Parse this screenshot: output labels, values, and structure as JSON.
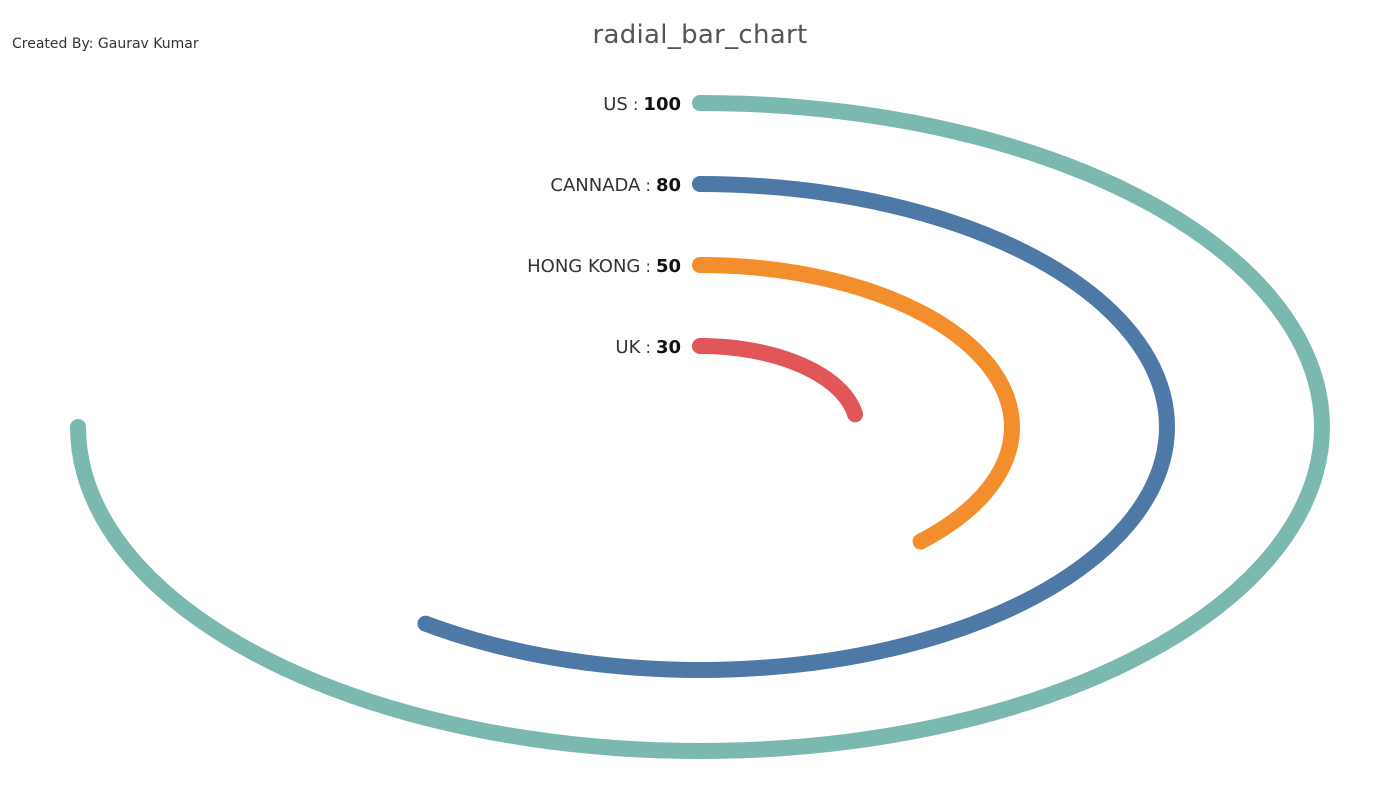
{
  "credit": "Created By: Gaurav Kumar",
  "chart_data": {
    "type": "radial_bar",
    "title": "radial_bar_chart",
    "max_value": 100,
    "separator": " : ",
    "bars": [
      {
        "label": "US",
        "value": 100,
        "color": "#7ab8b0"
      },
      {
        "label": "CANNADA",
        "value": 80,
        "color": "#4e78a6"
      },
      {
        "label": "HONG KONG",
        "value": 50,
        "color": "#f28e2b"
      },
      {
        "label": "UK",
        "value": 30,
        "color": "#e15759"
      }
    ]
  }
}
